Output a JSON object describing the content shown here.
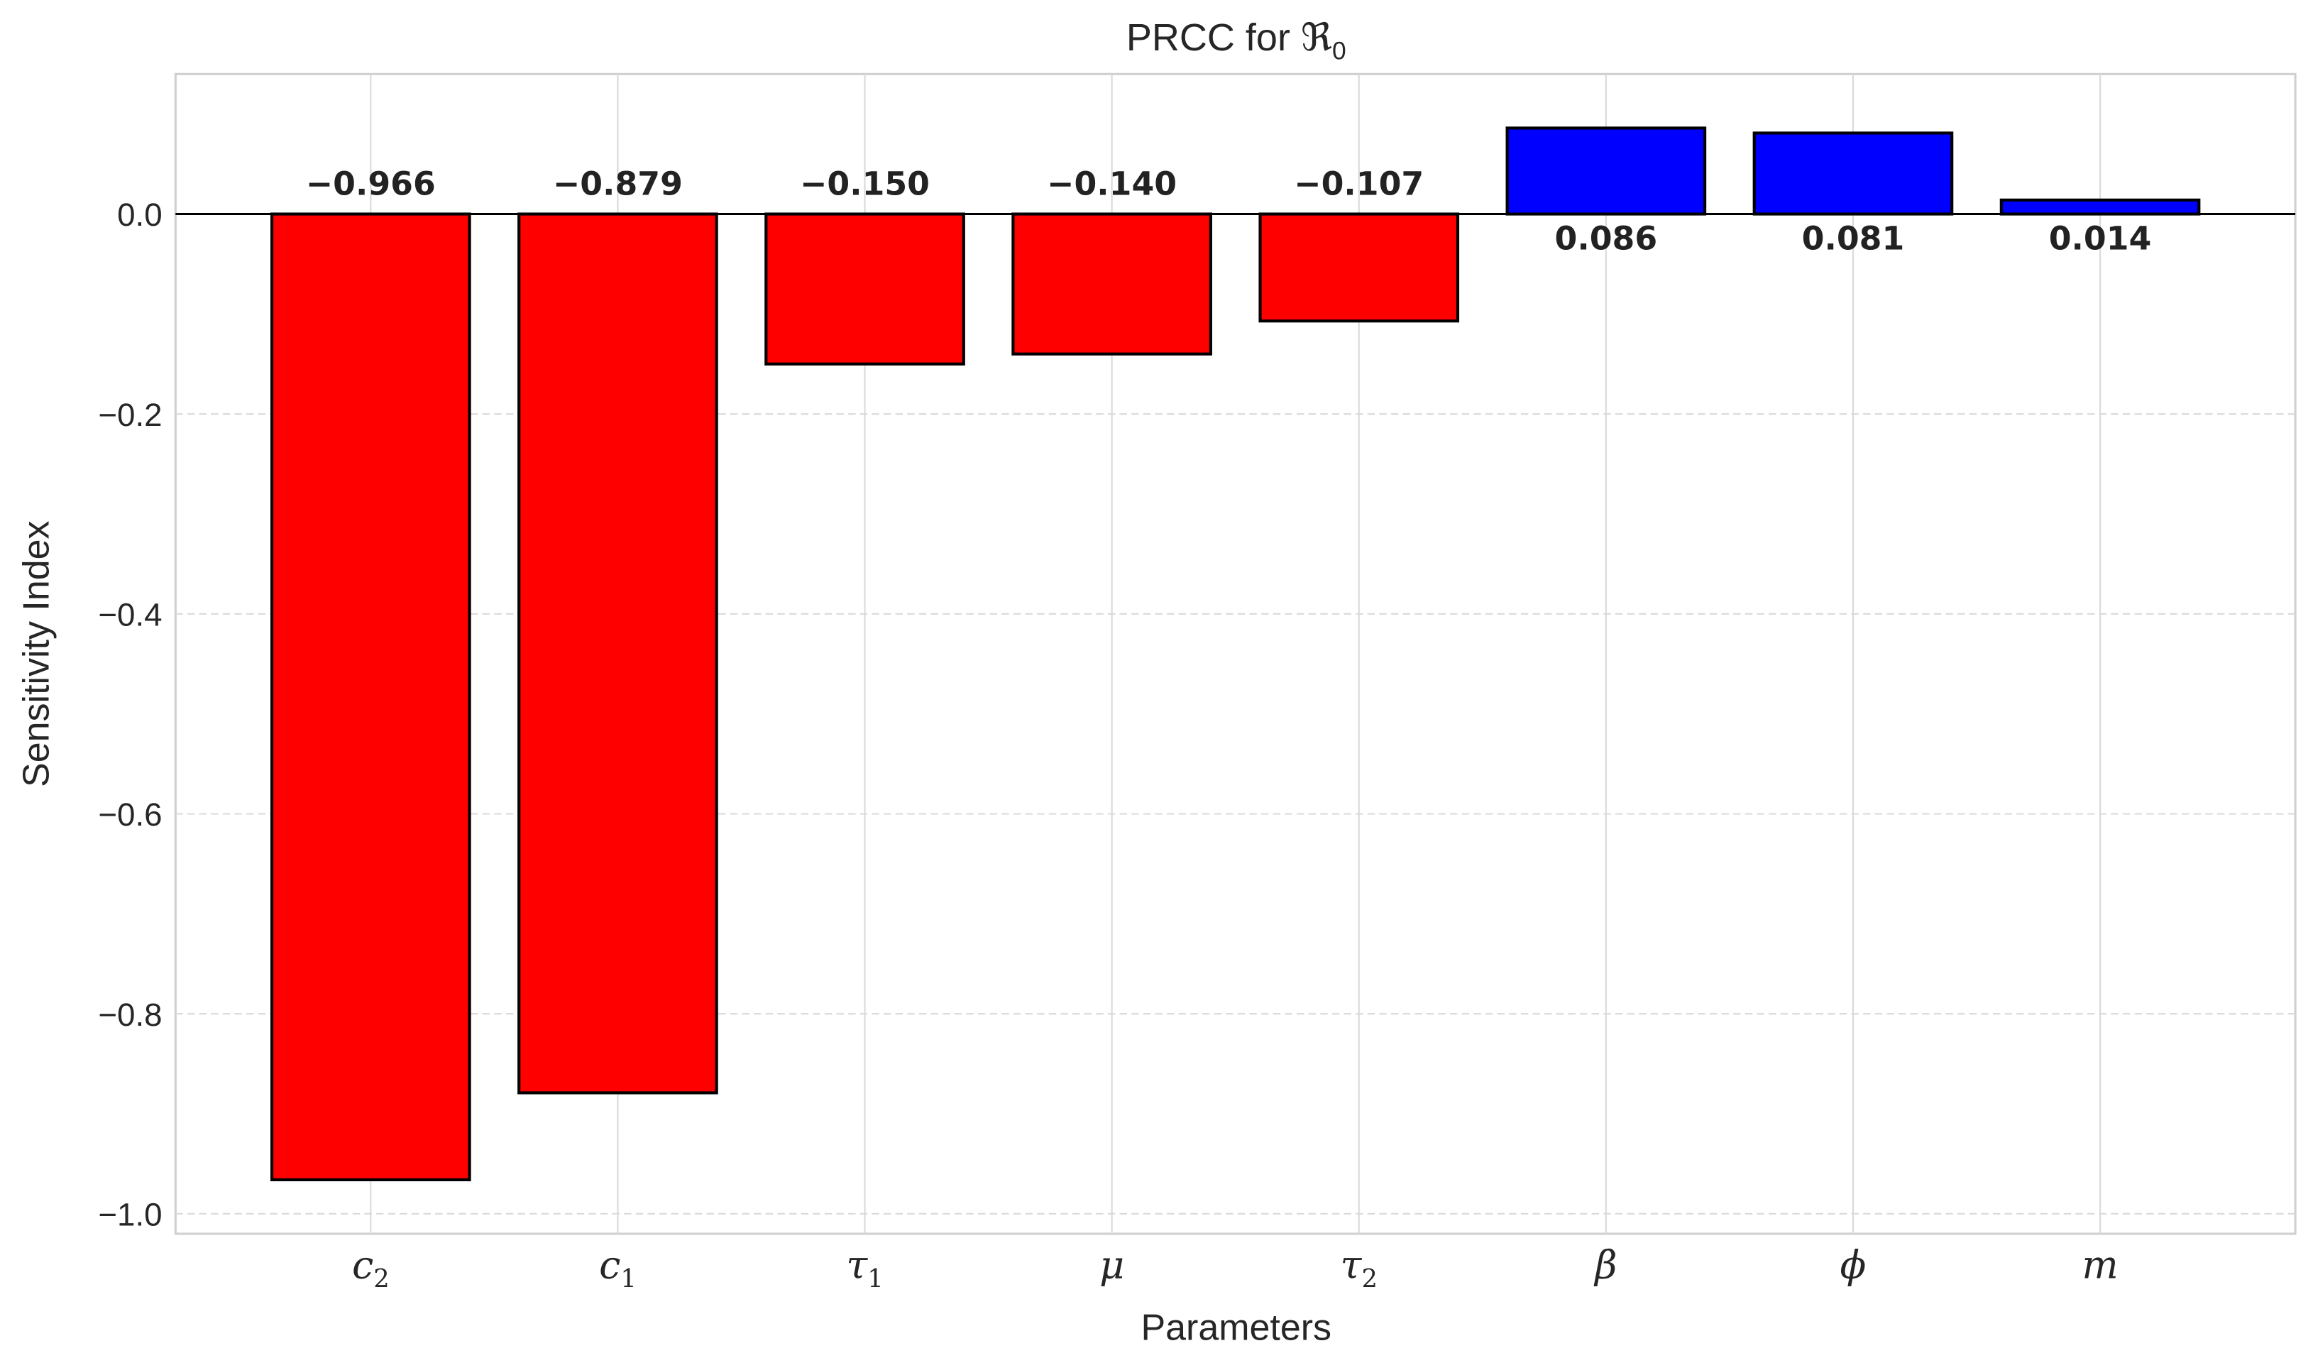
{
  "chart_data": {
    "type": "bar",
    "title": "PRCC for ℜ₀",
    "title_main": "PRCC for ",
    "title_symbol": "ℜ",
    "title_subscript": "0",
    "xlabel": "Parameters",
    "ylabel": "Sensitivity Index",
    "categories": [
      {
        "base": "c",
        "sub": "2"
      },
      {
        "base": "c",
        "sub": "1"
      },
      {
        "base": "τ",
        "sub": "1"
      },
      {
        "base": "μ",
        "sub": ""
      },
      {
        "base": "τ",
        "sub": "2"
      },
      {
        "base": "β",
        "sub": ""
      },
      {
        "base": "ϕ",
        "sub": ""
      },
      {
        "base": "m",
        "sub": ""
      }
    ],
    "values": [
      -0.966,
      -0.879,
      -0.15,
      -0.14,
      -0.107,
      0.086,
      0.081,
      0.014
    ],
    "data_labels": [
      "−0.966",
      "−0.879",
      "−0.150",
      "−0.140",
      "−0.107",
      "0.086",
      "0.081",
      "0.014"
    ],
    "ylim": [
      -1.02,
      0.14
    ],
    "yticks": [
      0.0,
      -0.2,
      -0.4,
      -0.6,
      -0.8,
      -1.0
    ],
    "ytick_labels": [
      "0.0",
      "−0.2",
      "−0.4",
      "−0.6",
      "−0.8",
      "−1.0"
    ],
    "grid": true,
    "colors": {
      "negative": "#ff0000",
      "positive": "#0000ff",
      "edge": "#000000",
      "grid": "#d9d9d9"
    }
  }
}
